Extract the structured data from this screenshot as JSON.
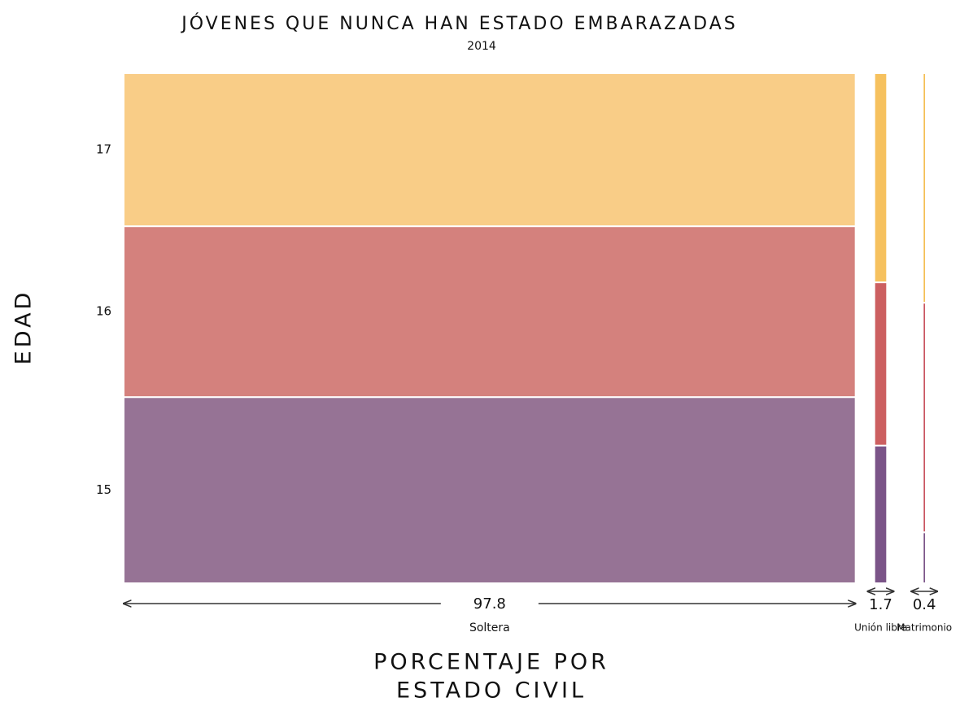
{
  "chart_data": {
    "type": "mosaic",
    "title": "JÓVENES QUE NUNCA HAN ESTADO EMBARAZADAS",
    "subtitle": "2014",
    "y_label": "EDAD",
    "x_label": [
      "PORCENTAJE POR",
      "ESTADO CIVIL"
    ],
    "categories": [
      "Soltera",
      "Unión libre",
      "Matrimonio"
    ],
    "widths": [
      97.8,
      1.7,
      0.4
    ],
    "series": [
      {
        "name": "15",
        "colors": [
          "#967395",
          "#7b5488",
          "#7b5488"
        ],
        "values": [
          36.5,
          27,
          10
        ]
      },
      {
        "name": "16",
        "colors": [
          "#d4817d",
          "#cc5f60",
          "#c95560"
        ],
        "values": [
          33.5,
          32,
          45
        ]
      },
      {
        "name": "17",
        "colors": [
          "#f9cd87",
          "#f6c15e",
          "#f4bf55"
        ],
        "values": [
          30,
          41,
          45
        ]
      }
    ]
  }
}
